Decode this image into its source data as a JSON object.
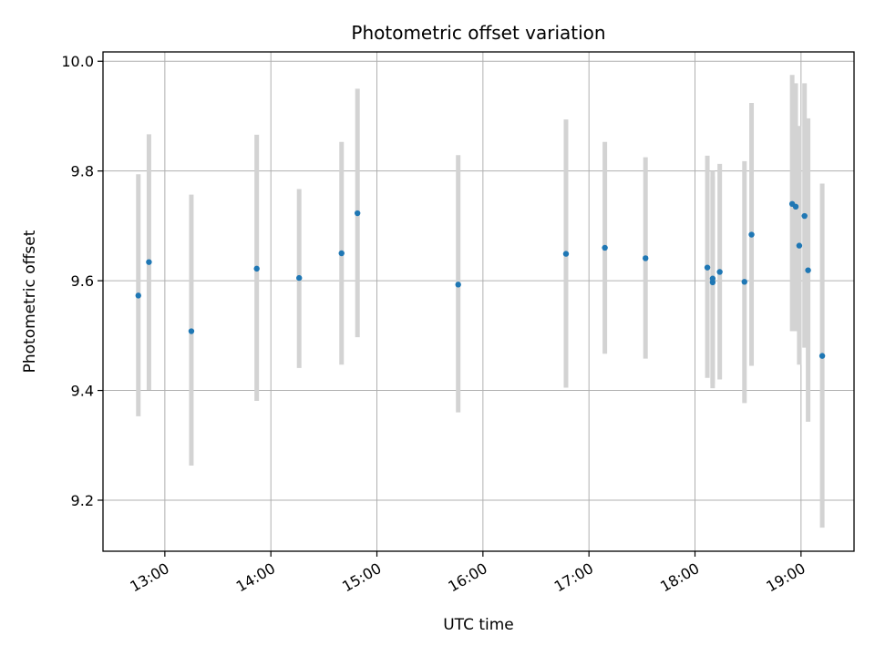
{
  "chart_data": {
    "type": "scatter",
    "title": "Photometric offset variation",
    "xlabel": "UTC time",
    "ylabel": "Photometric offset",
    "xlim": [
      "12:25",
      "19:30"
    ],
    "ylim": [
      9.107,
      10.017
    ],
    "x_ticks": [
      "13:00",
      "14:00",
      "15:00",
      "16:00",
      "17:00",
      "18:00",
      "19:00"
    ],
    "y_ticks": [
      "9.2",
      "9.4",
      "9.6",
      "9.8",
      "10.0"
    ],
    "grid": true,
    "colors": {
      "point": "#1f77b4",
      "errorbar": "#d3d3d3",
      "grid": "#b0b0b0"
    },
    "points": [
      {
        "x": "12:45",
        "y": 9.573,
        "err_low": 9.353,
        "err_high": 9.794
      },
      {
        "x": "12:51",
        "y": 9.634,
        "err_low": 9.401,
        "err_high": 9.867
      },
      {
        "x": "13:15",
        "y": 9.508,
        "err_low": 9.263,
        "err_high": 9.757
      },
      {
        "x": "13:52",
        "y": 9.622,
        "err_low": 9.381,
        "err_high": 9.866
      },
      {
        "x": "14:16",
        "y": 9.605,
        "err_low": 9.441,
        "err_high": 9.767
      },
      {
        "x": "14:40",
        "y": 9.65,
        "err_low": 9.447,
        "err_high": 9.853
      },
      {
        "x": "14:49",
        "y": 9.723,
        "err_low": 9.497,
        "err_high": 9.95
      },
      {
        "x": "15:46",
        "y": 9.593,
        "err_low": 9.36,
        "err_high": 9.829
      },
      {
        "x": "16:47",
        "y": 9.649,
        "err_low": 9.405,
        "err_high": 9.894
      },
      {
        "x": "17:09",
        "y": 9.66,
        "err_low": 9.467,
        "err_high": 9.853
      },
      {
        "x": "17:32",
        "y": 9.641,
        "err_low": 9.458,
        "err_high": 9.825
      },
      {
        "x": "18:07",
        "y": 9.624,
        "err_low": 9.423,
        "err_high": 9.828
      },
      {
        "x": "18:10",
        "y": 9.604,
        "err_low": 9.412,
        "err_high": 9.8
      },
      {
        "x": "18:10",
        "y": 9.597,
        "err_low": 9.404,
        "err_high": 9.79
      },
      {
        "x": "18:14",
        "y": 9.616,
        "err_low": 9.42,
        "err_high": 9.813
      },
      {
        "x": "18:28",
        "y": 9.598,
        "err_low": 9.377,
        "err_high": 9.818
      },
      {
        "x": "18:32",
        "y": 9.684,
        "err_low": 9.445,
        "err_high": 9.924
      },
      {
        "x": "18:55",
        "y": 9.74,
        "err_low": 9.508,
        "err_high": 9.975
      },
      {
        "x": "18:57",
        "y": 9.735,
        "err_low": 9.508,
        "err_high": 9.96
      },
      {
        "x": "18:59",
        "y": 9.664,
        "err_low": 9.447,
        "err_high": 9.882
      },
      {
        "x": "19:02",
        "y": 9.718,
        "err_low": 9.478,
        "err_high": 9.96
      },
      {
        "x": "19:04",
        "y": 9.619,
        "err_low": 9.343,
        "err_high": 9.896
      },
      {
        "x": "19:12",
        "y": 9.463,
        "err_low": 9.15,
        "err_high": 9.777
      }
    ]
  }
}
